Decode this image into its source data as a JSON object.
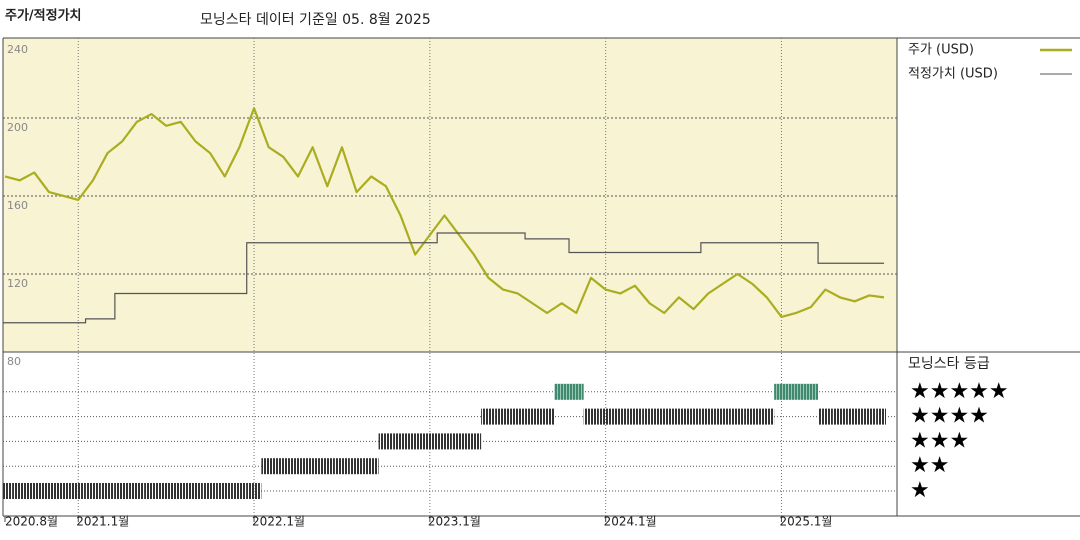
{
  "chart_data": {
    "type": "line",
    "title": "주가/적정가치",
    "subtitle": "모닝스타 데이터 기준일 05. 8월 2025",
    "categories": [
      "2020.8월",
      null,
      null,
      null,
      null,
      "2021.1월",
      null,
      null,
      null,
      null,
      null,
      null,
      null,
      null,
      null,
      null,
      null,
      "2022.1월",
      null,
      null,
      null,
      null,
      null,
      null,
      null,
      null,
      null,
      null,
      null,
      "2023.1월",
      null,
      null,
      null,
      null,
      null,
      null,
      null,
      null,
      null,
      null,
      null,
      "2024.1월",
      null,
      null,
      null,
      null,
      null,
      null,
      null,
      null,
      null,
      null,
      null,
      "2025.1월",
      null,
      null,
      null,
      null,
      null,
      null,
      null
    ],
    "series": [
      {
        "name": "주가 (USD)",
        "color": "#a9ad1f",
        "values": [
          170,
          168,
          172,
          162,
          160,
          158,
          168,
          182,
          188,
          198,
          202,
          196,
          198,
          188,
          182,
          170,
          185,
          205,
          185,
          180,
          170,
          185,
          165,
          185,
          162,
          170,
          165,
          150,
          130,
          140,
          150,
          140,
          130,
          118,
          112,
          110,
          105,
          100,
          105,
          100,
          118,
          112,
          110,
          114,
          105,
          100,
          108,
          102,
          110,
          115,
          120,
          115,
          108,
          98,
          100,
          103,
          112,
          108,
          106,
          109,
          108
        ]
      },
      {
        "name": "적정가치 (USD)",
        "color": "#555555",
        "step": true,
        "values": [
          95,
          95,
          95,
          95,
          95,
          95,
          97,
          97,
          110,
          110,
          110,
          110,
          110,
          110,
          110,
          110,
          110,
          136,
          136,
          136,
          136,
          136,
          136,
          136,
          136,
          136,
          136,
          136,
          136,
          136,
          141,
          141,
          141,
          141,
          141,
          141,
          138,
          138,
          138,
          131,
          131,
          131,
          131,
          131,
          131,
          131,
          131,
          131,
          136,
          136,
          136,
          136,
          136,
          136,
          136,
          136,
          125.5,
          125.5,
          125.5,
          125.5,
          125.5
        ]
      }
    ],
    "ylim": [
      80,
      241
    ],
    "yticks": [
      80,
      120,
      160,
      200,
      240
    ],
    "grid": true,
    "rating": {
      "title": "모닝스타 등급",
      "levels": [
        "★",
        "★★",
        "★★★",
        "★★★★",
        "★★★★★"
      ],
      "values": [
        1,
        1,
        1,
        1,
        1,
        1,
        1,
        1,
        1,
        1,
        1,
        1,
        1,
        1,
        1,
        1,
        1,
        1,
        2,
        2,
        2,
        2,
        2,
        2,
        2,
        2,
        3,
        3,
        3,
        3,
        3,
        3,
        3,
        4,
        4,
        4,
        4,
        4,
        5,
        5,
        4,
        4,
        4,
        4,
        4,
        4,
        4,
        4,
        4,
        4,
        4,
        4,
        4,
        5,
        5,
        5,
        4,
        4,
        4,
        4,
        4
      ],
      "color": "#333333",
      "top_color": "#3f8a6f"
    }
  }
}
